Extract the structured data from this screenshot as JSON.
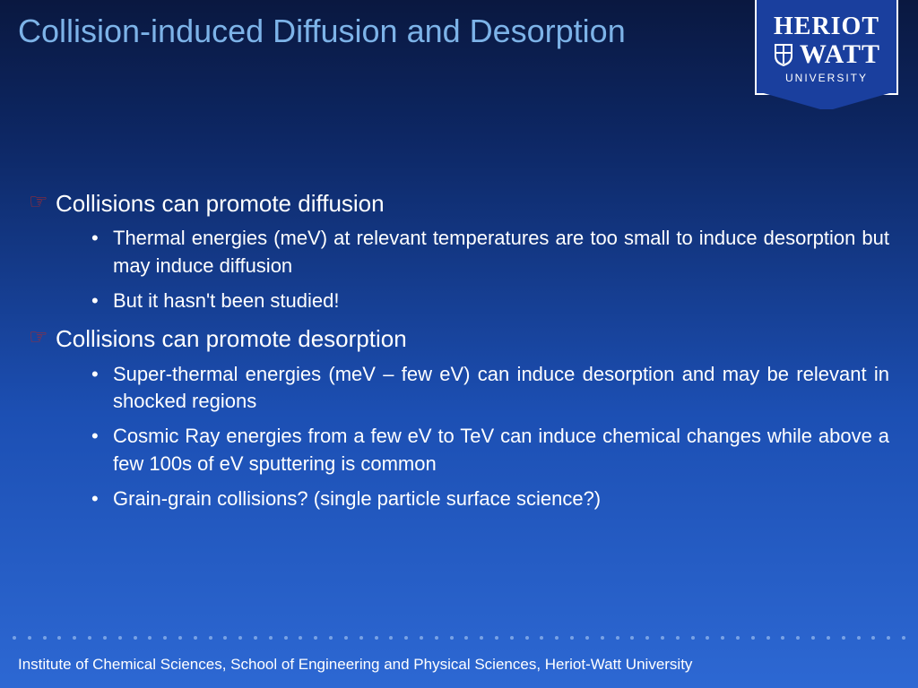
{
  "title": "Collision-induced Diffusion and Desorption",
  "logo": {
    "line1": "HERIOT",
    "line2": "WATT",
    "line3": "UNIVERSITY"
  },
  "colors": {
    "title": "#7db3e8",
    "hand_bullet": "#b02a2a",
    "text": "#ffffff",
    "logo_bg": "#1a3f9e",
    "bg_top": "#0a1840",
    "bg_bottom": "#2d68d3"
  },
  "sections": [
    {
      "heading": "Collisions can promote diffusion",
      "items": [
        "Thermal energies (meV) at relevant temperatures are too small to induce desorption but may induce diffusion",
        "But it hasn't been studied!"
      ]
    },
    {
      "heading": "Collisions can promote desorption",
      "items": [
        "Super-thermal energies (meV – few eV) can induce desorption and may be relevant in shocked regions",
        "Cosmic Ray energies from a few eV to TeV can induce chemical changes while above a few 100s of eV sputtering is common",
        "Grain-grain collisions? (single particle surface science?)"
      ]
    }
  ],
  "footer": "Institute of Chemical Sciences, School of Engineering and Physical Sciences, Heriot-Watt University"
}
